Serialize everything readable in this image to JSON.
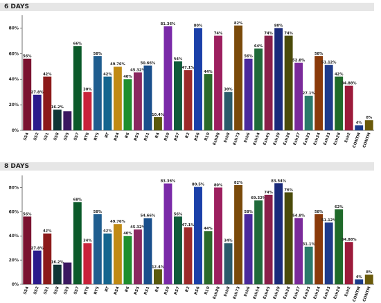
{
  "panels": [
    {
      "title": "6 DAYS"
    },
    {
      "title": "8 DAYS"
    }
  ],
  "chart_data": [
    {
      "type": "bar",
      "title": "6 DAYS",
      "ylim": [
        0,
        90
      ],
      "yticks": [
        "0%",
        "20%",
        "40%",
        "60%",
        "80%"
      ],
      "categories": [
        "SS4",
        "SS2",
        "SS1",
        "SS8",
        "SS5",
        "SS7",
        "RT6",
        "RT5",
        "RT",
        "RS4",
        "R6",
        "RS5",
        "RS1",
        "R4",
        "RS9",
        "RS7",
        "R2",
        "RS6",
        "R10",
        "Esh88",
        "Esh8",
        "Esh73",
        "Esh6",
        "Esh54",
        "Esh45",
        "Esh39",
        "Esh38",
        "Esh37",
        "Esh35",
        "Esh34",
        "Esh33",
        "Esh28",
        "Esh2",
        "CONTM",
        "CONTM"
      ],
      "values": [
        56,
        27.8,
        42,
        16.2,
        15,
        66,
        30,
        58,
        42,
        49.76,
        40,
        45.32,
        50.66,
        10.4,
        81.36,
        54,
        47.1,
        80,
        44,
        74,
        30,
        82,
        56,
        64,
        74,
        80,
        74,
        52.8,
        27.1,
        58,
        51.12,
        42,
        34.88,
        4,
        8
      ],
      "labels": [
        "56%",
        "27.8%",
        "42%",
        "16.2%",
        "",
        "66%",
        "30%",
        "58%",
        "42%",
        "49.76%",
        "40%",
        "45.32%",
        "50.66%",
        "10.4%",
        "81.36%",
        "54%",
        "47.1%",
        "80%",
        "44%",
        "74%",
        "30%",
        "82%",
        "56%",
        "64%",
        "74%",
        "80%",
        "74%",
        "52.8%",
        "27.1%",
        "58%",
        "51.12%",
        "42%",
        "34.88%",
        "4%",
        "8%"
      ],
      "colors": [
        "#7a1230",
        "#2b1a8c",
        "#8c1a1a",
        "#0f3535",
        "#3a1860",
        "#0b5a2a",
        "#c8223a",
        "#1f5d8f",
        "#14658f",
        "#c08a14",
        "#1f8f2e",
        "#8a2860",
        "#1a4f8c",
        "#5a5a0c",
        "#7a2aa8",
        "#0f5a3a",
        "#9c2a2a",
        "#1a3fa8",
        "#2a6a2a",
        "#9c1f5f",
        "#2a5a6a",
        "#7a4a0a",
        "#4a2a9c",
        "#1f6a3a",
        "#8a1f4a",
        "#1a2a7a",
        "#4a4a0a",
        "#7a2a9a",
        "#2a7a6a",
        "#8a3a0a",
        "#1f3a8a",
        "#1f6a2a",
        "#9c1a3a",
        "#1a3a8a",
        "#6a5a0a"
      ]
    },
    {
      "type": "bar",
      "title": "8 DAYS",
      "ylim": [
        0,
        90
      ],
      "yticks": [
        "0%",
        "20%",
        "40%",
        "60%",
        "80%"
      ],
      "categories": [
        "SS4",
        "SS2",
        "SS1",
        "SS8",
        "SS5",
        "SS7",
        "RT6",
        "RT5",
        "RT",
        "RS4",
        "R6",
        "RS5",
        "RS1",
        "R4",
        "RS9",
        "RS7",
        "R2",
        "RS6",
        "R10",
        "Esh88",
        "Esh8",
        "Esh73",
        "Esh6",
        "Esh54",
        "Esh45",
        "Esh39",
        "Esh38",
        "Esh37",
        "Esh35",
        "Esh34",
        "Esh33",
        "Esh28",
        "Esh2",
        "CONTM",
        "CONTM"
      ],
      "values": [
        56,
        27.8,
        42,
        16.2,
        18,
        68,
        34,
        58,
        42,
        49.76,
        40,
        45.32,
        54.66,
        12.4,
        83.36,
        56,
        47.1,
        80.5,
        44,
        80,
        34,
        82,
        58,
        69.32,
        74,
        83.54,
        76,
        54.8,
        31.1,
        58,
        51.12,
        62,
        34.88,
        4,
        8
      ],
      "labels": [
        "56%",
        "27.8%",
        "42%",
        "16.2%",
        "",
        "68%",
        "34%",
        "58%",
        "42%",
        "49.76%",
        "40%",
        "45.32%",
        "54.66%",
        "12.4%",
        "83.36%",
        "56%",
        "47.1%",
        "80.5%",
        "44%",
        "80%",
        "34%",
        "82%",
        "58%",
        "69.32%",
        "74%",
        "83.54%",
        "76%",
        "54.8%",
        "31.1%",
        "58%",
        "51.12%",
        "62%",
        "34.88%",
        "4%",
        "8%"
      ],
      "colors": [
        "#7a1230",
        "#2b1a8c",
        "#8c1a1a",
        "#0f3535",
        "#3a1860",
        "#0b5a2a",
        "#c8223a",
        "#1f5d8f",
        "#14658f",
        "#c08a14",
        "#1f8f2e",
        "#8a2860",
        "#1a4f8c",
        "#5a5a0c",
        "#7a2aa8",
        "#0f5a3a",
        "#9c2a2a",
        "#1a3fa8",
        "#2a6a2a",
        "#9c1f5f",
        "#2a5a6a",
        "#7a4a0a",
        "#4a2a9c",
        "#1f6a3a",
        "#8a1f4a",
        "#1a2a7a",
        "#4a4a0a",
        "#7a2a9a",
        "#2a7a6a",
        "#8a3a0a",
        "#1f3a8a",
        "#1f6a2a",
        "#9c1a3a",
        "#1a3a8a",
        "#6a5a0a"
      ]
    }
  ]
}
